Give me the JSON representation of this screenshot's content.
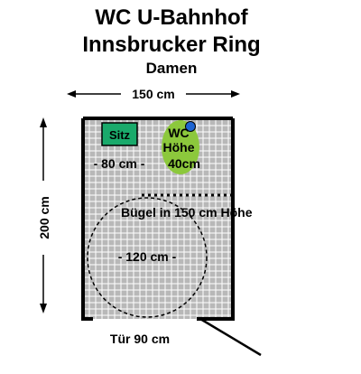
{
  "title": {
    "line1": "WC U-Bahnhof",
    "line2": "Innsbrucker Ring",
    "line3": "Damen"
  },
  "dimensions": {
    "width_label": "150 cm",
    "height_label": "200 cm",
    "door_label": "Tür 90 cm",
    "front_space_label": "- 80 cm -",
    "turning_circle_label": "- 120 cm -",
    "rail_label": "Bügel in 150 cm Höhe"
  },
  "fixtures": {
    "seat_label": "Sitz",
    "wc_line1": "WC",
    "wc_line2": "Höhe",
    "wc_line3": "40cm"
  },
  "colors": {
    "grid_tile": "#b8b8b8",
    "grout": "#ffffff",
    "wall": "#000000",
    "seat": "#1aaa6b",
    "wc_bowl": "#8cc83c",
    "flush_button": "#1e64d2"
  }
}
